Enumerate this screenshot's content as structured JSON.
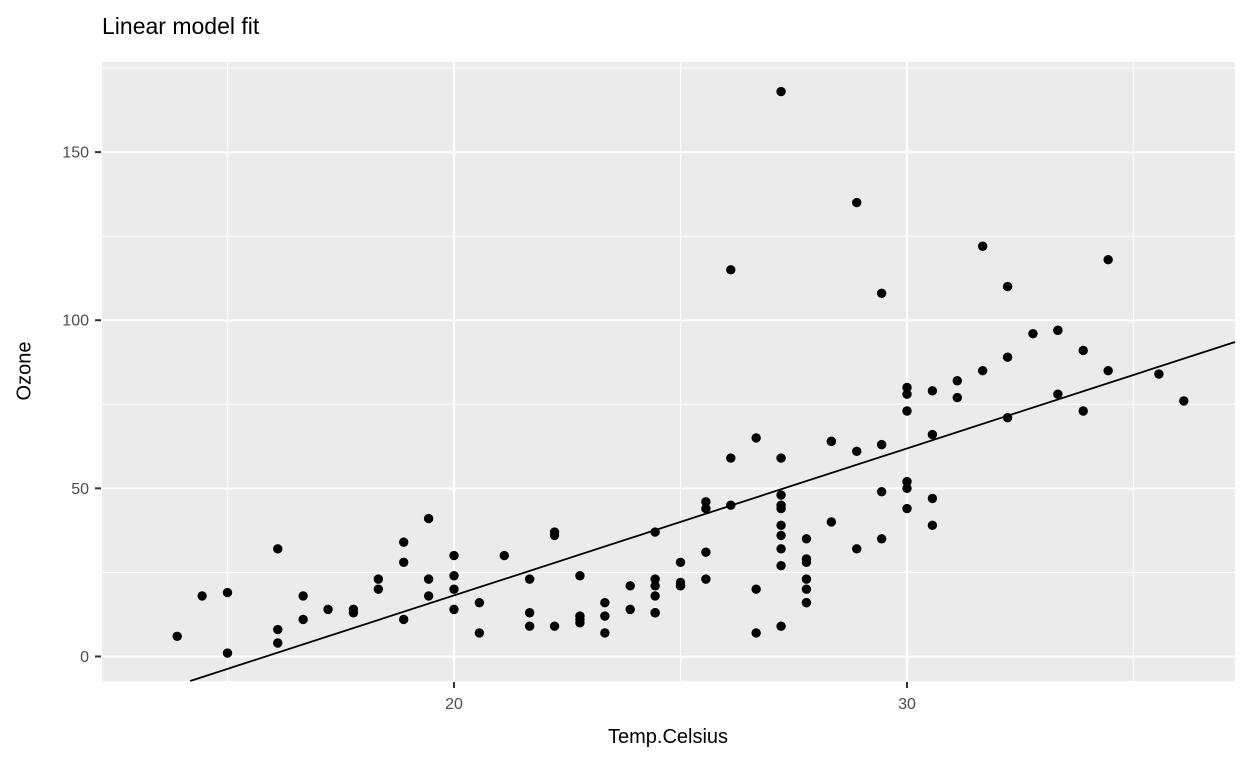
{
  "chart_data": {
    "type": "scatter",
    "title": "Linear model fit",
    "xlabel": "Temp.Celsius",
    "ylabel": "Ozone",
    "xlim": [
      12.23,
      37.24
    ],
    "ylim": [
      -7.3,
      176.8
    ],
    "x_major_ticks": [
      20,
      30
    ],
    "x_minor_ticks": [
      15,
      25,
      35
    ],
    "y_major_ticks": [
      0,
      50,
      100,
      150
    ],
    "y_minor_ticks": [
      25,
      75,
      125,
      175
    ],
    "grid": true,
    "legend_position": "none",
    "colors": {
      "panel_bg": "#EBEBEB",
      "grid": "#FFFFFF",
      "point": "#000000",
      "fit_line": "#000000",
      "tick_label": "#4D4D4D",
      "tick_mark": "#333333",
      "title": "#000000"
    },
    "fit_line": {
      "type": "linear",
      "slope": 4.3717,
      "intercept": -69.28
    },
    "points": [
      [
        19.44,
        41
      ],
      [
        22.22,
        36
      ],
      [
        23.33,
        12
      ],
      [
        16.67,
        18
      ],
      [
        18.89,
        28
      ],
      [
        18.33,
        23
      ],
      [
        15,
        19
      ],
      [
        16.11,
        8
      ],
      [
        23.33,
        7
      ],
      [
        20.56,
        16
      ],
      [
        18.89,
        11
      ],
      [
        20,
        14
      ],
      [
        14.44,
        18
      ],
      [
        17.78,
        14
      ],
      [
        18.89,
        34
      ],
      [
        13.89,
        6
      ],
      [
        20,
        30
      ],
      [
        16.67,
        11
      ],
      [
        15,
        1
      ],
      [
        22.78,
        11
      ],
      [
        16.11,
        4
      ],
      [
        16.11,
        32
      ],
      [
        19.44,
        23
      ],
      [
        27.22,
        45
      ],
      [
        26.11,
        115
      ],
      [
        24.44,
        37
      ],
      [
        27.78,
        29
      ],
      [
        32.22,
        71
      ],
      [
        30.56,
        39
      ],
      [
        27.78,
        23
      ],
      [
        25,
        21
      ],
      [
        22.22,
        37
      ],
      [
        18.33,
        20
      ],
      [
        22.78,
        12
      ],
      [
        24.44,
        13
      ],
      [
        28.89,
        135
      ],
      [
        29.44,
        49
      ],
      [
        27.22,
        32
      ],
      [
        28.33,
        64
      ],
      [
        28.33,
        40
      ],
      [
        31.11,
        77
      ],
      [
        33.33,
        97
      ],
      [
        33.33,
        97
      ],
      [
        31.67,
        85
      ],
      [
        22.78,
        10
      ],
      [
        27.22,
        27
      ],
      [
        26.67,
        7
      ],
      [
        27.22,
        48
      ],
      [
        27.78,
        35
      ],
      [
        28.89,
        61
      ],
      [
        30.56,
        79
      ],
      [
        29.44,
        63
      ],
      [
        23.33,
        16
      ],
      [
        30,
        80
      ],
      [
        29.44,
        108
      ],
      [
        27.78,
        20
      ],
      [
        30,
        52
      ],
      [
        31.11,
        82
      ],
      [
        30,
        50
      ],
      [
        28.33,
        64
      ],
      [
        27.22,
        59
      ],
      [
        27.22,
        39
      ],
      [
        27.22,
        9
      ],
      [
        27.78,
        16
      ],
      [
        30,
        78
      ],
      [
        29.44,
        35
      ],
      [
        30.56,
        66
      ],
      [
        31.67,
        122
      ],
      [
        32.22,
        89
      ],
      [
        32.22,
        110
      ],
      [
        30,
        44
      ],
      [
        27.78,
        28
      ],
      [
        26.67,
        65
      ],
      [
        25,
        22
      ],
      [
        26.11,
        59
      ],
      [
        24.44,
        23
      ],
      [
        25.56,
        31
      ],
      [
        25.56,
        44
      ],
      [
        25,
        21
      ],
      [
        22.22,
        9
      ],
      [
        26.11,
        45
      ],
      [
        27.22,
        168
      ],
      [
        30,
        73
      ],
      [
        36.11,
        76
      ],
      [
        34.44,
        118
      ],
      [
        35.56,
        84
      ],
      [
        34.44,
        85
      ],
      [
        32.78,
        96
      ],
      [
        33.33,
        78
      ],
      [
        33.89,
        73
      ],
      [
        33.89,
        91
      ],
      [
        30.56,
        47
      ],
      [
        28.89,
        32
      ],
      [
        26.67,
        20
      ],
      [
        25.56,
        23
      ],
      [
        23.89,
        21
      ],
      [
        22.78,
        24
      ],
      [
        27.22,
        44
      ],
      [
        24.44,
        21
      ],
      [
        25,
        28
      ],
      [
        21.67,
        9
      ],
      [
        21.67,
        13
      ],
      [
        25.56,
        46
      ],
      [
        19.44,
        18
      ],
      [
        24.44,
        13
      ],
      [
        20,
        24
      ],
      [
        27.78,
        16
      ],
      [
        17.78,
        13
      ],
      [
        21.67,
        23
      ],
      [
        27.22,
        36
      ],
      [
        20.56,
        7
      ],
      [
        17.22,
        14
      ],
      [
        21.11,
        30
      ],
      [
        23.89,
        14
      ],
      [
        24.44,
        18
      ],
      [
        20,
        20
      ]
    ]
  }
}
